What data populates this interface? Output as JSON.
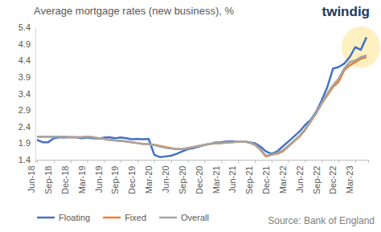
{
  "chart_data": {
    "type": "line",
    "title": "Average mortgage rates (new business), %",
    "annotations": [
      "twindig",
      "Source: Bank of England"
    ],
    "categories": [
      "Jun-18",
      null,
      null,
      "Sep-18",
      null,
      null,
      "Dec-18",
      null,
      null,
      "Mar-19",
      null,
      null,
      "Jun-19",
      null,
      null,
      "Sep-19",
      null,
      null,
      "Dec-19",
      null,
      null,
      "Mar-20",
      null,
      null,
      "Jun-20",
      null,
      null,
      "Sep-20",
      null,
      null,
      "Dec-20",
      null,
      null,
      "Mar-21",
      null,
      null,
      "Jun-21",
      null,
      null,
      "Sep-21",
      null,
      null,
      "Dec-21",
      null,
      null,
      "Mar-22",
      null,
      null,
      "Jun-22",
      null,
      null,
      "Sep-22",
      null,
      null,
      "Dec-22",
      null,
      null,
      "Mar-23",
      null,
      null
    ],
    "series": [
      {
        "name": "Floating",
        "color": "#4472c4",
        "values": [
          2.0,
          1.93,
          1.93,
          2.05,
          2.08,
          2.07,
          2.08,
          2.08,
          2.05,
          2.07,
          2.05,
          2.04,
          2.07,
          2.08,
          2.05,
          2.07,
          2.05,
          2.02,
          2.03,
          2.02,
          2.03,
          1.55,
          1.48,
          1.5,
          1.52,
          1.58,
          1.65,
          1.72,
          1.75,
          1.8,
          1.85,
          1.88,
          1.92,
          1.93,
          1.95,
          1.95,
          1.95,
          1.95,
          1.93,
          1.9,
          1.8,
          1.65,
          1.58,
          1.65,
          1.8,
          1.95,
          2.1,
          2.25,
          2.45,
          2.6,
          2.85,
          3.2,
          3.6,
          4.15,
          4.2,
          4.3,
          4.5,
          4.8,
          4.72,
          5.1
        ]
      },
      {
        "name": "Fixed",
        "color": "#ed7d31",
        "values": [
          2.1,
          2.1,
          2.1,
          2.1,
          2.1,
          2.1,
          2.08,
          2.08,
          2.08,
          2.1,
          2.08,
          2.05,
          2.03,
          2.0,
          1.98,
          1.97,
          1.95,
          1.93,
          1.9,
          1.88,
          1.87,
          1.85,
          1.82,
          1.78,
          1.75,
          1.72,
          1.72,
          1.75,
          1.78,
          1.82,
          1.85,
          1.88,
          1.9,
          1.9,
          1.92,
          1.93,
          1.95,
          1.95,
          1.92,
          1.85,
          1.7,
          1.5,
          1.55,
          1.58,
          1.65,
          1.8,
          1.95,
          2.1,
          2.3,
          2.55,
          2.8,
          3.1,
          3.35,
          3.6,
          3.75,
          4.1,
          4.25,
          4.35,
          4.45,
          4.5
        ]
      },
      {
        "name": "Overall",
        "color": "#a5a5a5",
        "values": [
          2.1,
          2.1,
          2.1,
          2.1,
          2.1,
          2.1,
          2.08,
          2.08,
          2.08,
          2.1,
          2.08,
          2.05,
          2.03,
          2.0,
          1.98,
          1.97,
          1.95,
          1.93,
          1.9,
          1.88,
          1.87,
          1.85,
          1.8,
          1.76,
          1.74,
          1.72,
          1.72,
          1.75,
          1.78,
          1.82,
          1.85,
          1.88,
          1.9,
          1.9,
          1.92,
          1.93,
          1.95,
          1.95,
          1.92,
          1.86,
          1.72,
          1.52,
          1.56,
          1.6,
          1.68,
          1.82,
          1.97,
          2.12,
          2.32,
          2.57,
          2.82,
          3.12,
          3.4,
          3.65,
          3.85,
          4.15,
          4.35,
          4.4,
          4.5,
          4.55
        ]
      }
    ],
    "ylim": [
      1.4,
      5.4
    ],
    "yticks": [
      1.4,
      1.9,
      2.4,
      2.9,
      3.4,
      3.9,
      4.4,
      4.9,
      5.4
    ],
    "grid": false,
    "legend": "bottom"
  }
}
